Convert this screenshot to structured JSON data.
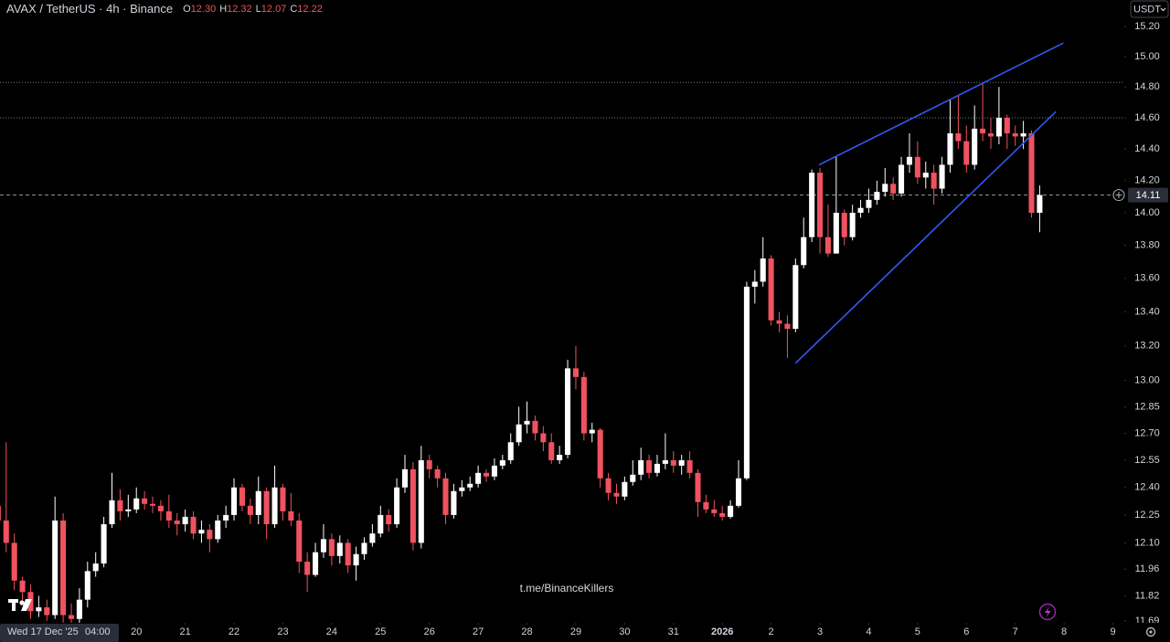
{
  "chart_data": {
    "type": "candlestick",
    "header": {
      "symbol": "AVAX / TetherUS · 4h · Binance",
      "ohlc": [
        {
          "label": "O",
          "value": "12.30"
        },
        {
          "label": "H",
          "value": "12.32"
        },
        {
          "label": "L",
          "value": "12.07"
        },
        {
          "label": "C",
          "value": "12.22"
        }
      ]
    },
    "currency": "USDT",
    "watermark": "t.me/BinanceKillers",
    "crosshair": {
      "date": "Wed 17 Dec '25",
      "time": "04:00"
    },
    "up_color": "#ffffff",
    "down_color": "#f0525f",
    "log_scale": true,
    "ylim": [
      11.68,
      15.38
    ],
    "yticks": [
      {
        "value": 15.2,
        "label": "15.20"
      },
      {
        "value": 15.0,
        "label": "15.00"
      },
      {
        "value": 14.8,
        "label": "14.80"
      },
      {
        "value": 14.6,
        "label": "14.60"
      },
      {
        "value": 14.4,
        "label": "14.40"
      },
      {
        "value": 14.2,
        "label": "14.20"
      },
      {
        "value": 14.0,
        "label": "14.00"
      },
      {
        "value": 13.8,
        "label": "13.80"
      },
      {
        "value": 13.6,
        "label": "13.60"
      },
      {
        "value": 13.4,
        "label": "13.40"
      },
      {
        "value": 13.2,
        "label": "13.20"
      },
      {
        "value": 13.0,
        "label": "13.00"
      },
      {
        "value": 12.85,
        "label": "12.85"
      },
      {
        "value": 12.7,
        "label": "12.70"
      },
      {
        "value": 12.55,
        "label": "12.55"
      },
      {
        "value": 12.4,
        "label": "12.40"
      },
      {
        "value": 12.25,
        "label": "12.25"
      },
      {
        "value": 12.1,
        "label": "12.10"
      },
      {
        "value": 11.96,
        "label": "11.96"
      },
      {
        "value": 11.82,
        "label": "11.82"
      },
      {
        "value": 11.69,
        "label": "11.69"
      }
    ],
    "xlim": [
      0.24,
      138.4
    ],
    "xticks": [
      {
        "value": 17,
        "label": "20"
      },
      {
        "value": 23,
        "label": "21"
      },
      {
        "value": 29,
        "label": "22"
      },
      {
        "value": 35,
        "label": "23"
      },
      {
        "value": 41,
        "label": "24"
      },
      {
        "value": 47,
        "label": "25"
      },
      {
        "value": 53,
        "label": "26"
      },
      {
        "value": 59,
        "label": "27"
      },
      {
        "value": 65,
        "label": "28"
      },
      {
        "value": 71,
        "label": "29"
      },
      {
        "value": 77,
        "label": "30"
      },
      {
        "value": 83,
        "label": "31"
      },
      {
        "value": 89,
        "label": "2026"
      },
      {
        "value": 95,
        "label": "2"
      },
      {
        "value": 101,
        "label": "3"
      },
      {
        "value": 107,
        "label": "4"
      },
      {
        "value": 113,
        "label": "5"
      },
      {
        "value": 119,
        "label": "6"
      },
      {
        "value": 125,
        "label": "7"
      },
      {
        "value": 131,
        "label": "8"
      },
      {
        "value": 137,
        "label": "9"
      }
    ],
    "open": [
      12.3,
      12.22,
      12.1,
      11.9,
      11.84,
      11.74,
      11.76,
      11.72,
      12.22,
      11.72,
      11.7,
      11.8,
      11.95,
      11.99,
      12.2,
      12.33,
      12.27,
      12.28,
      12.34,
      12.31,
      12.3,
      12.27,
      12.22,
      12.2,
      12.24,
      12.15,
      12.17,
      12.12,
      12.22,
      12.25,
      12.4,
      12.3,
      12.25,
      12.38,
      12.2,
      12.4,
      12.27,
      12.22,
      12.0,
      11.93,
      12.05,
      12.12,
      12.03,
      12.1,
      11.98,
      12.04,
      12.1,
      12.15,
      12.25,
      12.2,
      12.4,
      12.5,
      12.1,
      12.55,
      12.5,
      12.45,
      12.25,
      12.38,
      12.4,
      12.42,
      12.48,
      12.46,
      12.52,
      12.55,
      12.65,
      12.75,
      12.77,
      12.7,
      12.65,
      12.55,
      12.58,
      13.07,
      13.02,
      12.7,
      12.72,
      12.45,
      12.37,
      12.35,
      12.43,
      12.47,
      12.55,
      12.48,
      12.53,
      12.55,
      12.52,
      12.55,
      12.48,
      12.32,
      12.28,
      12.26,
      12.24,
      12.3,
      12.45,
      13.55,
      13.58,
      13.72,
      13.35,
      13.33,
      13.3,
      13.68,
      13.85,
      14.25,
      13.85,
      13.75,
      14.0,
      13.85,
      14.0,
      14.03,
      14.08,
      14.13,
      14.18,
      14.12,
      14.3,
      14.35,
      14.22,
      14.25,
      14.15,
      14.3,
      14.5,
      14.45,
      14.3,
      14.53,
      14.5,
      14.48,
      14.6,
      14.5,
      14.48,
      14.5,
      14.0
    ],
    "high": [
      12.32,
      12.65,
      12.15,
      11.92,
      11.88,
      11.82,
      11.8,
      12.35,
      12.26,
      11.78,
      11.86,
      12.0,
      12.05,
      12.24,
      12.48,
      12.39,
      12.36,
      12.4,
      12.38,
      12.35,
      12.33,
      12.36,
      12.26,
      12.28,
      12.27,
      12.22,
      12.2,
      12.25,
      12.3,
      12.45,
      12.42,
      12.34,
      12.46,
      12.4,
      12.52,
      12.42,
      12.37,
      12.26,
      12.05,
      12.1,
      12.2,
      12.15,
      12.14,
      12.12,
      12.08,
      12.13,
      12.2,
      12.3,
      12.28,
      12.45,
      12.58,
      12.54,
      12.63,
      12.58,
      12.52,
      12.48,
      12.42,
      12.44,
      12.46,
      12.52,
      12.5,
      12.56,
      12.58,
      12.7,
      12.85,
      12.88,
      12.8,
      12.74,
      12.7,
      12.63,
      13.12,
      13.2,
      13.05,
      12.76,
      12.73,
      12.48,
      12.42,
      12.46,
      12.55,
      12.62,
      12.58,
      12.58,
      12.7,
      12.6,
      12.58,
      12.6,
      12.5,
      12.36,
      12.33,
      12.3,
      12.33,
      12.55,
      13.58,
      13.65,
      13.85,
      13.74,
      13.4,
      13.38,
      13.72,
      13.97,
      14.27,
      14.28,
      14.05,
      14.35,
      14.02,
      14.05,
      14.08,
      14.15,
      14.2,
      14.28,
      14.22,
      14.35,
      14.5,
      14.45,
      14.32,
      14.3,
      14.35,
      14.72,
      14.75,
      14.55,
      14.68,
      14.83,
      14.6,
      14.8,
      14.62,
      14.55,
      14.58,
      14.52,
      14.17
    ],
    "low": [
      12.07,
      12.05,
      11.85,
      11.78,
      11.7,
      11.71,
      11.69,
      11.7,
      11.68,
      11.66,
      11.66,
      11.76,
      11.92,
      11.97,
      12.18,
      12.22,
      12.24,
      12.26,
      12.28,
      12.26,
      12.22,
      12.18,
      12.14,
      12.16,
      12.12,
      12.1,
      12.05,
      12.1,
      12.18,
      12.22,
      12.27,
      12.2,
      12.2,
      12.12,
      12.18,
      12.22,
      12.19,
      11.94,
      11.84,
      11.92,
      12.02,
      11.98,
      11.99,
      11.94,
      11.9,
      12.01,
      12.08,
      12.13,
      12.16,
      12.18,
      12.37,
      12.06,
      12.07,
      12.45,
      12.4,
      12.2,
      12.23,
      12.35,
      12.38,
      12.4,
      12.43,
      12.44,
      12.5,
      12.53,
      12.63,
      12.7,
      12.66,
      12.6,
      12.53,
      12.53,
      12.56,
      12.95,
      12.66,
      12.65,
      12.4,
      12.33,
      12.31,
      12.33,
      12.41,
      12.44,
      12.45,
      12.46,
      12.5,
      12.48,
      12.47,
      12.45,
      12.24,
      12.26,
      12.24,
      12.22,
      12.23,
      12.29,
      12.44,
      13.45,
      13.55,
      13.32,
      13.28,
      13.13,
      13.28,
      13.66,
      13.82,
      13.75,
      13.73,
      13.78,
      13.8,
      13.83,
      13.97,
      14.0,
      14.05,
      14.1,
      14.08,
      14.1,
      14.25,
      14.18,
      14.15,
      14.05,
      14.12,
      14.25,
      14.4,
      14.25,
      14.27,
      14.45,
      14.4,
      14.43,
      14.4,
      14.42,
      14.4,
      13.97,
      13.88
    ],
    "close": [
      12.22,
      12.1,
      11.9,
      11.84,
      11.74,
      11.76,
      11.72,
      12.22,
      11.72,
      11.7,
      11.8,
      11.95,
      11.99,
      12.2,
      12.33,
      12.27,
      12.28,
      12.34,
      12.31,
      12.3,
      12.27,
      12.22,
      12.2,
      12.24,
      12.15,
      12.17,
      12.12,
      12.22,
      12.25,
      12.4,
      12.3,
      12.25,
      12.38,
      12.2,
      12.4,
      12.27,
      12.22,
      12.0,
      11.93,
      12.05,
      12.12,
      12.03,
      12.1,
      11.98,
      12.04,
      12.1,
      12.15,
      12.25,
      12.2,
      12.4,
      12.5,
      12.1,
      12.55,
      12.5,
      12.45,
      12.25,
      12.38,
      12.4,
      12.42,
      12.48,
      12.46,
      12.52,
      12.55,
      12.65,
      12.75,
      12.77,
      12.7,
      12.65,
      12.55,
      12.58,
      13.07,
      13.02,
      12.7,
      12.72,
      12.45,
      12.37,
      12.35,
      12.43,
      12.47,
      12.55,
      12.48,
      12.53,
      12.55,
      12.52,
      12.55,
      12.48,
      12.32,
      12.28,
      12.26,
      12.24,
      12.3,
      12.45,
      13.55,
      13.58,
      13.72,
      13.35,
      13.33,
      13.3,
      13.68,
      13.85,
      14.25,
      13.85,
      13.75,
      14.0,
      13.85,
      14.0,
      14.03,
      14.08,
      14.13,
      14.18,
      14.12,
      14.3,
      14.35,
      14.22,
      14.25,
      14.15,
      14.3,
      14.5,
      14.45,
      14.3,
      14.53,
      14.5,
      14.48,
      14.6,
      14.5,
      14.48,
      14.5,
      14.0,
      14.11
    ],
    "horizontal_lines": [
      {
        "value": 14.83,
        "style": "dotted",
        "color": "#787b86"
      },
      {
        "value": 14.6,
        "style": "dotted",
        "color": "#787b86"
      }
    ],
    "price_line_color": "#9598a1",
    "drawings": [
      {
        "type": "trend-line",
        "color": "#2f5bf5",
        "points": [
          [
            100.9,
            14.3
          ],
          [
            130.9,
            15.09
          ]
        ]
      },
      {
        "type": "trend-line",
        "color": "#2f5bf5",
        "points": [
          [
            98.0,
            13.1
          ],
          [
            130.0,
            14.64
          ]
        ]
      }
    ]
  }
}
